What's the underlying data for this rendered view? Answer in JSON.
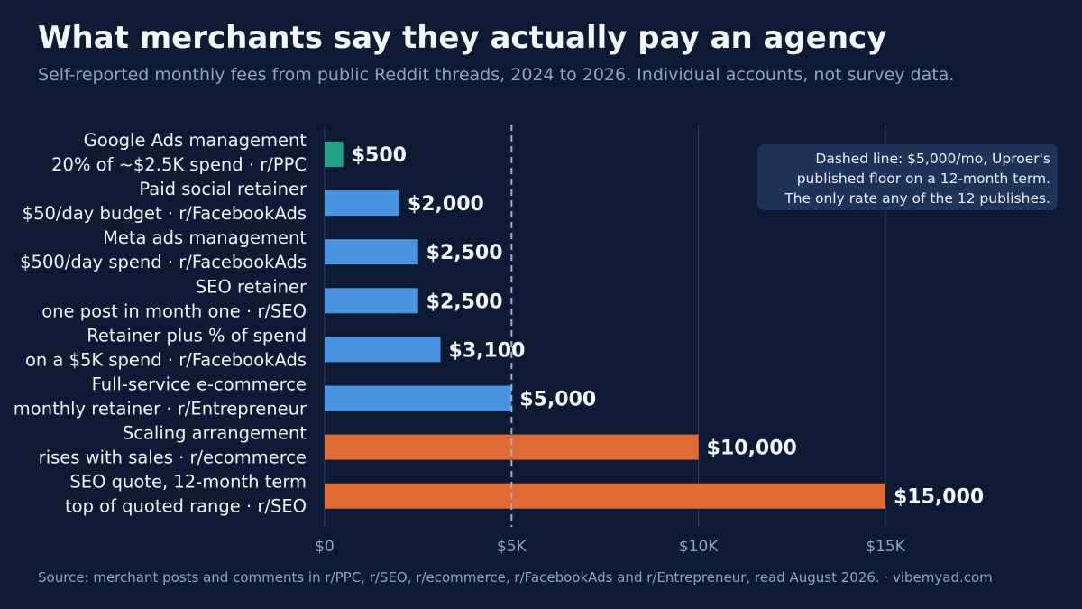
{
  "title": "What merchants say they actually pay an agency",
  "subtitle": "Self-reported monthly fees from public Reddit threads, 2024 to 2026. Individual accounts, not survey data.",
  "source": "Source: merchant posts and comments in r/PPC, r/SEO, r/ecommerce, r/FacebookAds and r/Entrepreneur, read August 2026.  ·  vibemyad.com",
  "note": {
    "lines": [
      "Dashed line: $5,000/mo, Uproer's",
      "published floor on a 12-month term.",
      "The only rate any of the 12 publishes."
    ]
  },
  "colors": {
    "background": "#0c1a33",
    "green": "#22a187",
    "blue": "#4a93e0",
    "orange": "#e06a33",
    "grid": "#2a3b5a",
    "reference": "#9fb0cc",
    "text": "#f3f6fb",
    "muted": "#8ea3c4"
  },
  "chart_data": {
    "type": "bar",
    "orientation": "horizontal",
    "categories": [
      {
        "label": "Google Ads management",
        "sublabel": "20% of ~$2.5K spend  ·  r/PPC"
      },
      {
        "label": "Paid social retainer",
        "sublabel": "$50/day budget  ·  r/FacebookAds"
      },
      {
        "label": "Meta ads management",
        "sublabel": "$500/day spend  ·  r/FacebookAds"
      },
      {
        "label": "SEO retainer",
        "sublabel": "one post in month one  ·  r/SEO"
      },
      {
        "label": "Retainer plus % of spend",
        "sublabel": "on a $5K spend  ·  r/FacebookAds"
      },
      {
        "label": "Full-service e-commerce",
        "sublabel": "monthly retainer  ·  r/Entrepreneur"
      },
      {
        "label": "Scaling arrangement",
        "sublabel": "rises with sales  ·  r/ecommerce"
      },
      {
        "label": "SEO quote, 12-month term",
        "sublabel": "top of quoted range  ·  r/SEO"
      }
    ],
    "values": [
      500,
      2000,
      2500,
      2500,
      3100,
      5000,
      10000,
      15000
    ],
    "value_labels": [
      "$500",
      "$2,000",
      "$2,500",
      "$2,500",
      "$3,100",
      "$5,000",
      "$10,000",
      "$15,000"
    ],
    "bar_colors": [
      "green",
      "blue",
      "blue",
      "blue",
      "blue",
      "blue",
      "orange",
      "orange"
    ],
    "xlim": [
      0,
      20000
    ],
    "xticks": [
      0,
      5000,
      10000,
      15000
    ],
    "xtick_labels": [
      "$0",
      "$5K",
      "$10K",
      "$15K"
    ],
    "reference_line": {
      "value": 5000,
      "style": "dashed"
    },
    "grid": "vertical",
    "title": "What merchants say they actually pay an agency",
    "xlabel": "",
    "ylabel": ""
  }
}
